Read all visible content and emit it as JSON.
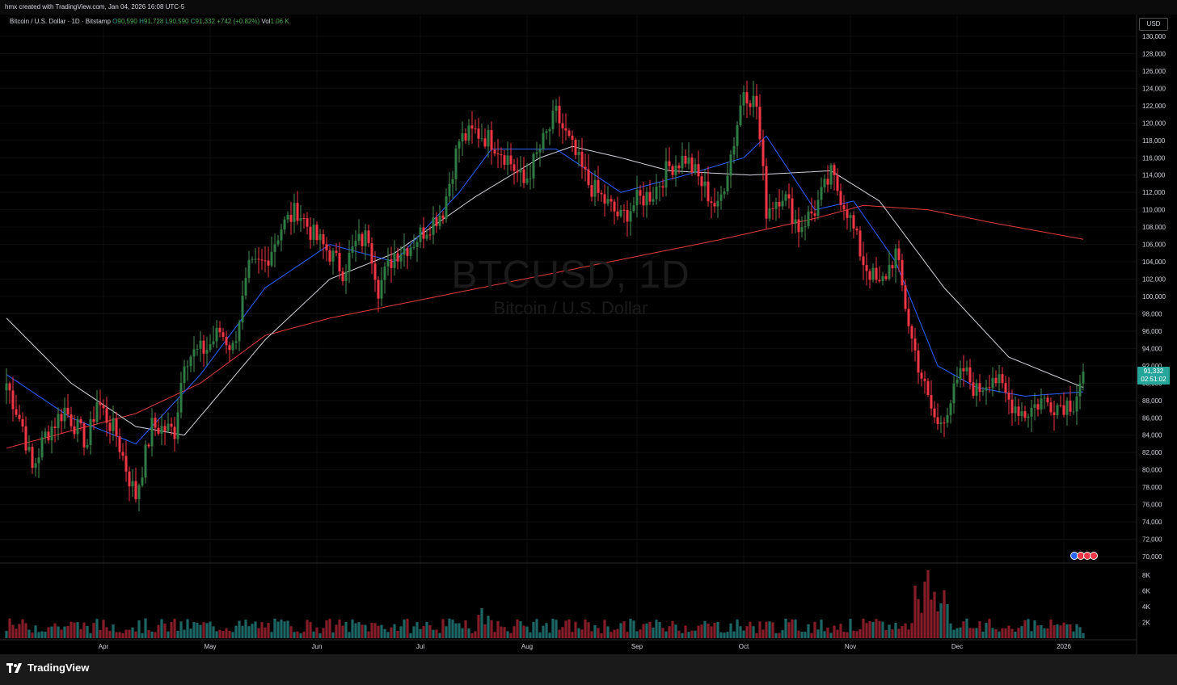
{
  "header": {
    "credit": "hmx created with TradingView.com, Jan 04, 2026 16:08 UTC-5"
  },
  "legend": {
    "symbol": "Bitcoin / U.S. Dollar · 1D · Bitstamp",
    "open_label": "O",
    "open": "90,590",
    "high_label": "H",
    "high": "91,728",
    "low_label": "L",
    "low": "90,590",
    "close_label": "C",
    "close": "91,332",
    "change": "+742 (+0.82%)",
    "vol_label": "Vol",
    "vol": "1.06 K"
  },
  "watermark": {
    "symbol": "BTCUSD, 1D",
    "description": "Bitcoin / U.S. Dollar"
  },
  "currency_button": "USD",
  "price_tag": {
    "price": "91,332",
    "countdown": "02:51:02"
  },
  "brand": "TradingView",
  "colors": {
    "up": "#26a69a",
    "down": "#f23645",
    "ema_fast": "#2962ff",
    "ema_mid": "#d1d4dc",
    "ema_slow": "#e03c3c"
  },
  "chart_data": {
    "type": "candlestick",
    "title": "BTCUSD, 1D",
    "ylim": [
      70000,
      130000
    ],
    "y_ticks": [
      "130,000",
      "128,000",
      "126,000",
      "124,000",
      "122,000",
      "120,000",
      "118,000",
      "116,000",
      "114,000",
      "112,000",
      "110,000",
      "108,000",
      "106,000",
      "104,000",
      "102,000",
      "100,000",
      "98,000",
      "96,000",
      "94,000",
      "92,000",
      "90,000",
      "88,000",
      "86,000",
      "84,000",
      "82,000",
      "80,000",
      "78,000",
      "76,000",
      "74,000",
      "72,000",
      "70,000"
    ],
    "volume_ticks": [
      "8K",
      "6K",
      "4K",
      "2K"
    ],
    "x_ticks": [
      "Apr",
      "May",
      "Jun",
      "Jul",
      "Aug",
      "Sep",
      "Oct",
      "Nov",
      "Dec",
      "2026"
    ],
    "anchors": [
      {
        "day": 0,
        "price": 90000
      },
      {
        "day": 5,
        "price": 85000
      },
      {
        "day": 8,
        "price": 80000
      },
      {
        "day": 12,
        "price": 84000
      },
      {
        "day": 18,
        "price": 87000
      },
      {
        "day": 25,
        "price": 83000
      },
      {
        "day": 28,
        "price": 88000
      },
      {
        "day": 34,
        "price": 84000
      },
      {
        "day": 38,
        "price": 79000
      },
      {
        "day": 40,
        "price": 77000
      },
      {
        "day": 45,
        "price": 85000
      },
      {
        "day": 52,
        "price": 84500
      },
      {
        "day": 55,
        "price": 93000
      },
      {
        "day": 62,
        "price": 94000
      },
      {
        "day": 66,
        "price": 96000
      },
      {
        "day": 70,
        "price": 94000
      },
      {
        "day": 75,
        "price": 103000
      },
      {
        "day": 80,
        "price": 104000
      },
      {
        "day": 85,
        "price": 108000
      },
      {
        "day": 90,
        "price": 110000
      },
      {
        "day": 95,
        "price": 107000
      },
      {
        "day": 100,
        "price": 105000
      },
      {
        "day": 104,
        "price": 103000
      },
      {
        "day": 108,
        "price": 106000
      },
      {
        "day": 112,
        "price": 107000
      },
      {
        "day": 115,
        "price": 101000
      },
      {
        "day": 120,
        "price": 105000
      },
      {
        "day": 125,
        "price": 106000
      },
      {
        "day": 130,
        "price": 108000
      },
      {
        "day": 135,
        "price": 110000
      },
      {
        "day": 140,
        "price": 118000
      },
      {
        "day": 145,
        "price": 119000
      },
      {
        "day": 150,
        "price": 118000
      },
      {
        "day": 155,
        "price": 116000
      },
      {
        "day": 160,
        "price": 113000
      },
      {
        "day": 165,
        "price": 117000
      },
      {
        "day": 170,
        "price": 121000
      },
      {
        "day": 175,
        "price": 117000
      },
      {
        "day": 180,
        "price": 113000
      },
      {
        "day": 185,
        "price": 111000
      },
      {
        "day": 190,
        "price": 109000
      },
      {
        "day": 195,
        "price": 111000
      },
      {
        "day": 200,
        "price": 112000
      },
      {
        "day": 205,
        "price": 115000
      },
      {
        "day": 210,
        "price": 116000
      },
      {
        "day": 215,
        "price": 113000
      },
      {
        "day": 220,
        "price": 110000
      },
      {
        "day": 225,
        "price": 118000
      },
      {
        "day": 228,
        "price": 124000
      },
      {
        "day": 232,
        "price": 122000
      },
      {
        "day": 235,
        "price": 110000
      },
      {
        "day": 240,
        "price": 112000
      },
      {
        "day": 245,
        "price": 108000
      },
      {
        "day": 250,
        "price": 110000
      },
      {
        "day": 255,
        "price": 114000
      },
      {
        "day": 260,
        "price": 110000
      },
      {
        "day": 265,
        "price": 104000
      },
      {
        "day": 270,
        "price": 101000
      },
      {
        "day": 275,
        "price": 105000
      },
      {
        "day": 280,
        "price": 95000
      },
      {
        "day": 285,
        "price": 88000
      },
      {
        "day": 288,
        "price": 85000
      },
      {
        "day": 292,
        "price": 88000
      },
      {
        "day": 296,
        "price": 91500
      },
      {
        "day": 300,
        "price": 89000
      },
      {
        "day": 305,
        "price": 91000
      },
      {
        "day": 310,
        "price": 88000
      },
      {
        "day": 315,
        "price": 86500
      },
      {
        "day": 320,
        "price": 88000
      },
      {
        "day": 325,
        "price": 87500
      },
      {
        "day": 330,
        "price": 87800
      },
      {
        "day": 333,
        "price": 91332
      }
    ],
    "ema_fast": [
      [
        0,
        91000
      ],
      [
        20,
        86000
      ],
      [
        40,
        83000
      ],
      [
        60,
        91000
      ],
      [
        80,
        101000
      ],
      [
        100,
        106000
      ],
      [
        120,
        104000
      ],
      [
        140,
        112000
      ],
      [
        150,
        117000
      ],
      [
        170,
        117000
      ],
      [
        190,
        112000
      ],
      [
        210,
        114000
      ],
      [
        228,
        116000
      ],
      [
        235,
        118500
      ],
      [
        250,
        110000
      ],
      [
        262,
        111000
      ],
      [
        275,
        104000
      ],
      [
        288,
        92000
      ],
      [
        300,
        89500
      ],
      [
        315,
        88500
      ],
      [
        333,
        89000
      ]
    ],
    "ema_mid": [
      [
        0,
        97500
      ],
      [
        20,
        90000
      ],
      [
        40,
        85000
      ],
      [
        55,
        84000
      ],
      [
        80,
        95000
      ],
      [
        100,
        102000
      ],
      [
        120,
        105000
      ],
      [
        145,
        111500
      ],
      [
        165,
        116000
      ],
      [
        175,
        117300
      ],
      [
        190,
        116000
      ],
      [
        205,
        114500
      ],
      [
        230,
        114000
      ],
      [
        255,
        114500
      ],
      [
        270,
        111000
      ],
      [
        290,
        101000
      ],
      [
        310,
        93000
      ],
      [
        333,
        89500
      ]
    ],
    "ema_slow": [
      [
        0,
        82500
      ],
      [
        40,
        86500
      ],
      [
        60,
        90000
      ],
      [
        80,
        95500
      ],
      [
        100,
        97500
      ],
      [
        140,
        100500
      ],
      [
        180,
        103500
      ],
      [
        220,
        106500
      ],
      [
        250,
        109000
      ],
      [
        265,
        110500
      ],
      [
        285,
        110000
      ],
      [
        305,
        108500
      ],
      [
        333,
        106600
      ]
    ]
  }
}
